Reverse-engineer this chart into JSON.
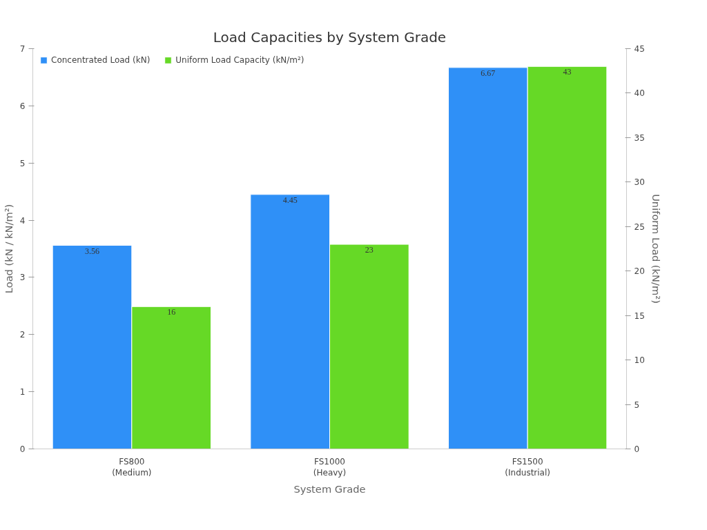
{
  "chart_data": {
    "type": "bar",
    "title": "Load Capacities by System Grade",
    "xlabel": "System Grade",
    "ylabel": "Load (kN / kN/m²)",
    "y2label": "Uniform Load (kN/m²)",
    "categories": [
      "FS800\n(Medium)",
      "FS1000\n(Heavy)",
      "FS1500\n(Industrial)"
    ],
    "series": [
      {
        "name": "Concentrated Load (kN)",
        "color": "#2f90f7",
        "values": [
          3.56,
          4.45,
          6.67
        ]
      },
      {
        "name": "Uniform Load Capacity (kN/m²)",
        "color": "#66d926",
        "values": [
          16,
          23,
          43
        ],
        "axis": "y2"
      }
    ],
    "ylim": [
      0,
      7
    ],
    "yticks": [
      0,
      1,
      2,
      3,
      4,
      5,
      6,
      7
    ],
    "y2lim": [
      0,
      45
    ],
    "y2ticks": [
      0,
      5,
      10,
      15,
      20,
      25,
      30,
      35,
      40,
      45
    ],
    "data_labels": true,
    "grid": false,
    "legend": "top left"
  }
}
